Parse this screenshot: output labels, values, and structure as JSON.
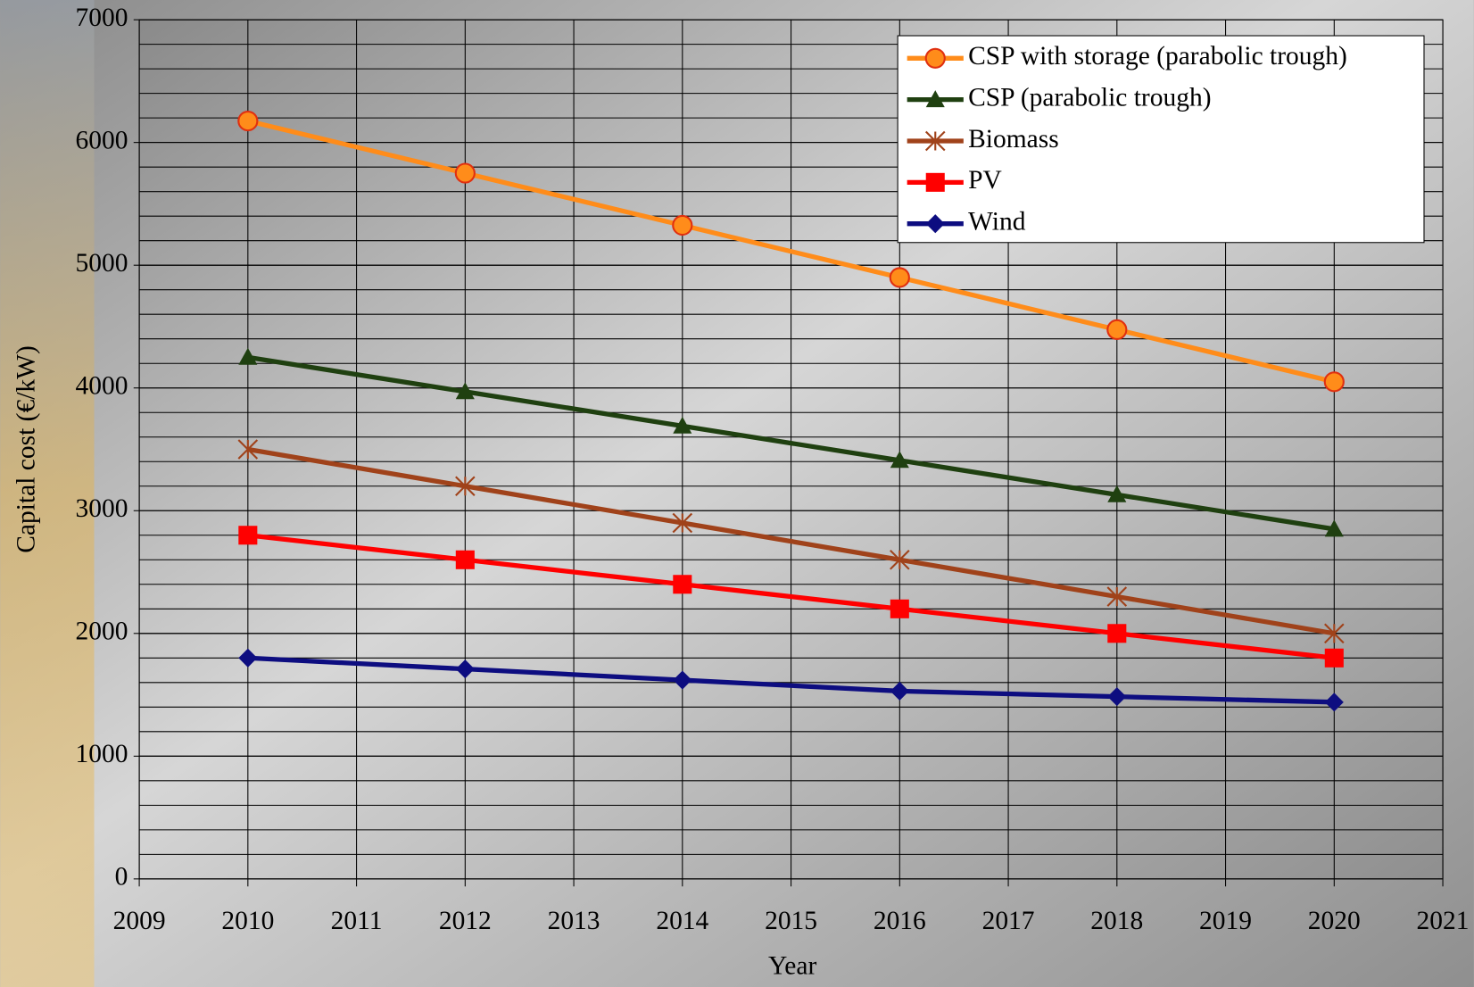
{
  "chart_data": {
    "type": "line",
    "x_label": "Year",
    "y_label": "Capital cost (€/kW)",
    "x": [
      2010,
      2012,
      2014,
      2016,
      2018,
      2020
    ],
    "series": [
      {
        "name": "CSP with storage (parabolic trough)",
        "color": "#ff8c1a",
        "marker": "circle",
        "values": [
          6175,
          5750,
          5325,
          4900,
          4475,
          4050
        ]
      },
      {
        "name": "CSP (parabolic trough)",
        "color": "#1f4010",
        "marker": "triangle",
        "values": [
          4250,
          3970,
          3690,
          3410,
          3130,
          2850
        ]
      },
      {
        "name": "Biomass",
        "color": "#a0421a",
        "marker": "asterisk",
        "values": [
          3500,
          3200,
          2900,
          2600,
          2300,
          2000
        ]
      },
      {
        "name": "PV",
        "color": "#ff0000",
        "marker": "square",
        "values": [
          2800,
          2600,
          2400,
          2200,
          2000,
          1800
        ]
      },
      {
        "name": "Wind",
        "color": "#0d0d80",
        "marker": "diamond",
        "values": [
          1800,
          1710,
          1620,
          1530,
          1485,
          1440
        ]
      }
    ],
    "xlim": [
      2009,
      2021
    ],
    "xticks": [
      2009,
      2010,
      2011,
      2012,
      2013,
      2014,
      2015,
      2016,
      2017,
      2018,
      2019,
      2020,
      2021
    ],
    "ylim": [
      0,
      7000
    ],
    "yticks": [
      0,
      1000,
      2000,
      3000,
      4000,
      5000,
      6000,
      7000
    ],
    "y_minor_step": 200,
    "grid": true,
    "legend": "top-right"
  }
}
